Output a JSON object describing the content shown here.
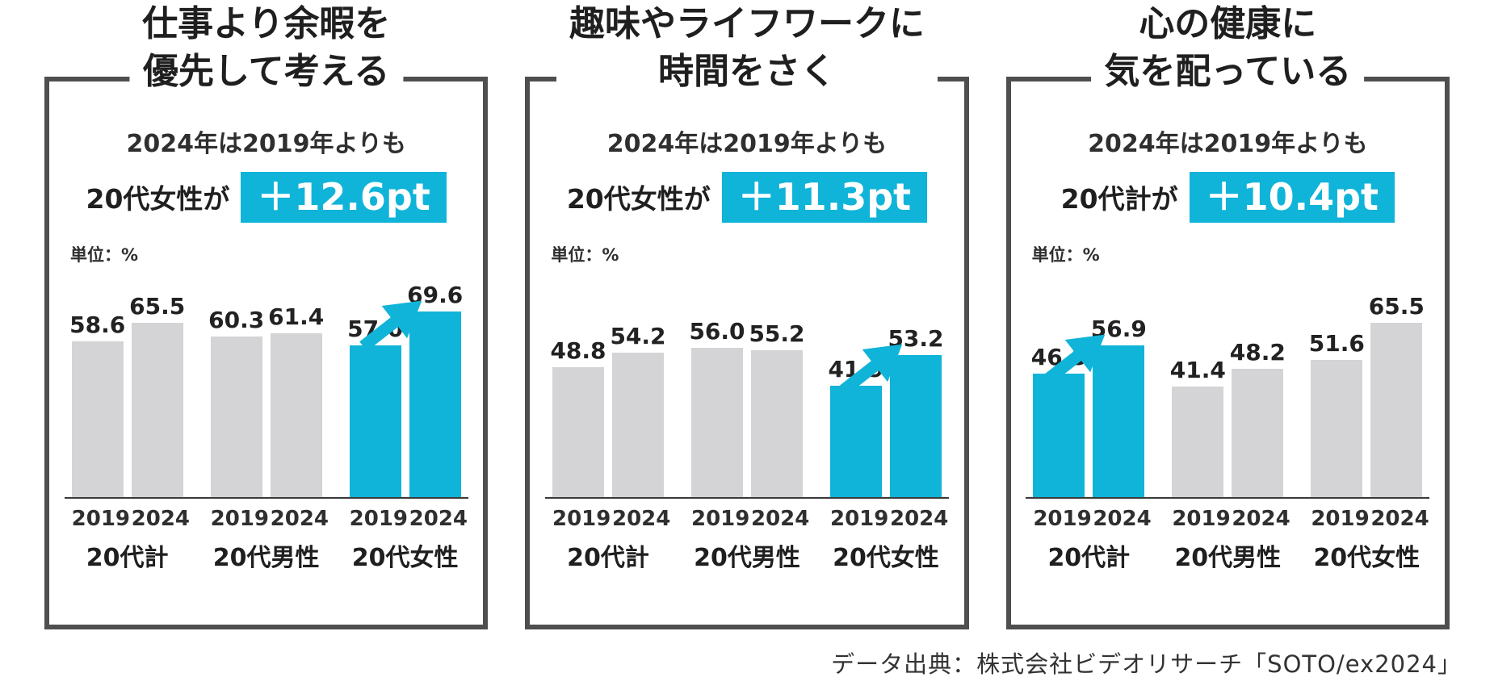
{
  "colors": {
    "accent": "#10b4d8",
    "bar_gray": "#d4d4d6",
    "box_border": "#4f4f4f"
  },
  "source": "データ出典：株式会社ビデオリサーチ「SOTO/ex2024」",
  "unit_label": "単位：%",
  "chart_data": [
    {
      "type": "bar",
      "title_lines": [
        "仕事より余暇を",
        "優先して考える"
      ],
      "subtitle": "2024年は2019年よりも",
      "callout_prefix": "20代女性が",
      "callout_value": "＋12.6pt",
      "unit": "単位：%",
      "categories": [
        "20代計",
        "20代男性",
        "20代女性"
      ],
      "series": [
        {
          "name": "2019",
          "values": [
            58.6,
            60.3,
            57.0
          ]
        },
        {
          "name": "2024",
          "values": [
            65.5,
            61.4,
            69.6
          ]
        }
      ],
      "highlight_category": "20代女性",
      "highlight_category_index": 2,
      "ylim": [
        0,
        80
      ],
      "grid": false,
      "legend": false
    },
    {
      "type": "bar",
      "title_lines": [
        "趣味やライフワークに",
        "時間をさく"
      ],
      "subtitle": "2024年は2019年よりも",
      "callout_prefix": "20代女性が",
      "callout_value": "＋11.3pt",
      "unit": "単位：%",
      "categories": [
        "20代計",
        "20代男性",
        "20代女性"
      ],
      "series": [
        {
          "name": "2019",
          "values": [
            48.8,
            56.0,
            41.9
          ]
        },
        {
          "name": "2024",
          "values": [
            54.2,
            55.2,
            53.2
          ]
        }
      ],
      "highlight_category": "20代女性",
      "highlight_category_index": 2,
      "ylim": [
        0,
        80
      ],
      "grid": false,
      "legend": false
    },
    {
      "type": "bar",
      "title_lines": [
        "心の健康に",
        "気を配っている"
      ],
      "subtitle": "2024年は2019年よりも",
      "callout_prefix": "20代計が",
      "callout_value": "＋10.4pt",
      "unit": "単位：%",
      "categories": [
        "20代計",
        "20代男性",
        "20代女性"
      ],
      "series": [
        {
          "name": "2019",
          "values": [
            46.5,
            41.4,
            51.6
          ]
        },
        {
          "name": "2024",
          "values": [
            56.9,
            48.2,
            65.5
          ]
        }
      ],
      "highlight_category": "20代計",
      "highlight_category_index": 0,
      "ylim": [
        0,
        80
      ],
      "grid": false,
      "legend": false
    }
  ]
}
